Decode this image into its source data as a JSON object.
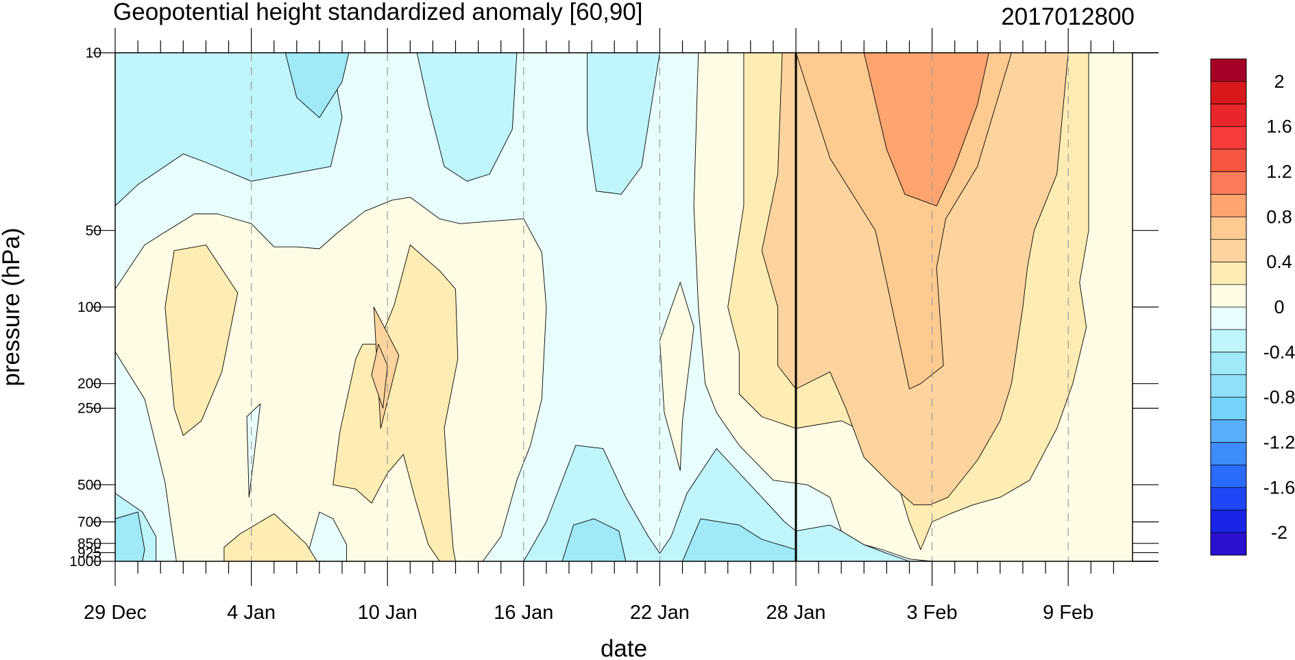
{
  "chart_data": {
    "type": "heatmap",
    "title": "Geopotential height standardized anomaly [60,90]",
    "subtitle": "2017012800",
    "xlabel": "date",
    "ylabel": "pressure (hPa)",
    "y_scale": "log",
    "y_reversed": true,
    "ylim": [
      1000,
      10
    ],
    "x_range": [
      "29 Dec",
      "13 Feb"
    ],
    "x_tick_labels": [
      "29 Dec",
      "4 Jan",
      "10 Jan",
      "16 Jan",
      "22 Jan",
      "28 Jan",
      "3 Feb",
      "9 Feb"
    ],
    "x_tick_days": [
      0,
      6,
      12,
      18,
      24,
      30,
      36,
      42
    ],
    "x_days_total": 45,
    "y_tick_values": [
      10,
      50,
      100,
      200,
      250,
      500,
      700,
      850,
      925,
      1000
    ],
    "y_tick_labels": [
      "10",
      "50",
      "100",
      "200",
      "250",
      "500",
      "700",
      "850",
      "925",
      "1000"
    ],
    "reference_line_day": 30,
    "colorbar": {
      "labels": [
        "2",
        "1.6",
        "1.2",
        "0.8",
        "0.4",
        "0",
        "-0.4",
        "-0.8",
        "-1.2",
        "-1.6",
        "-2"
      ],
      "colors": [
        "#a50026",
        "#d7191c",
        "#e8262b",
        "#f63c3c",
        "#f7553f",
        "#fb7a58",
        "#fda46f",
        "#fdca8f",
        "#fdd49e",
        "#fdecb3",
        "#fffbe4",
        "#e8fdfe",
        "#bff5fb",
        "#9fe9f8",
        "#8fe0f8",
        "#75d2fa",
        "#5aaffc",
        "#3f8cfd",
        "#2a6bfc",
        "#1f47f6",
        "#1823e8",
        "#2a10d0"
      ]
    },
    "legend_placement": "right",
    "grid": false,
    "levels_fill_map": {
      "-0.6": "#9fe9f8",
      "-0.4": "#bff5fb",
      "-0.2": "#e8fdfe",
      "0": "#fffbe4",
      "0.2": "#fdecb3",
      "0.4": "#fdd49e",
      "0.6": "#fdca8f",
      "0.8": "#fda46f"
    },
    "regions": [
      {
        "level": "-0.2",
        "points": [
          [
            0,
            10
          ],
          [
            45,
            10
          ],
          [
            45,
            1000
          ],
          [
            0,
            1000
          ]
        ]
      },
      {
        "level": "-0.4",
        "points": [
          [
            0,
            10
          ],
          [
            4.4,
            10
          ],
          [
            3.5,
            20
          ],
          [
            2,
            28
          ],
          [
            0,
            32
          ]
        ]
      },
      {
        "level": "-0.6",
        "points": [
          [
            0,
            10
          ],
          [
            2,
            10
          ],
          [
            0,
            12.5
          ]
        ]
      },
      {
        "level": "-0.4",
        "points": [
          [
            6.5,
            10
          ],
          [
            9.5,
            10
          ],
          [
            10,
            18
          ],
          [
            9.5,
            28
          ],
          [
            6,
            32
          ],
          [
            4,
            27
          ],
          [
            3,
            25
          ],
          [
            1,
            33
          ],
          [
            0,
            40
          ],
          [
            0,
            10
          ]
        ]
      },
      {
        "level": "-0.6",
        "points": [
          [
            7.5,
            10
          ],
          [
            10.3,
            10
          ],
          [
            10,
            13
          ],
          [
            9,
            18
          ],
          [
            8,
            15
          ]
        ]
      },
      {
        "level": "-0.4",
        "points": [
          [
            13.3,
            10
          ],
          [
            17.7,
            10
          ],
          [
            17.5,
            20
          ],
          [
            16.5,
            30
          ],
          [
            15.5,
            32
          ],
          [
            14.5,
            28
          ],
          [
            13.8,
            16
          ]
        ]
      },
      {
        "level": "-0.4",
        "points": [
          [
            20.8,
            10
          ],
          [
            24,
            10
          ],
          [
            23.2,
            28
          ],
          [
            22.3,
            36
          ],
          [
            21.2,
            35
          ],
          [
            20.8,
            20
          ]
        ]
      },
      {
        "level": "-0.4",
        "points": [
          [
            0,
            540
          ],
          [
            1.2,
            640
          ],
          [
            1.8,
            800
          ],
          [
            1.8,
            1000
          ],
          [
            0,
            1000
          ]
        ]
      },
      {
        "level": "-0.6",
        "points": [
          [
            0,
            680
          ],
          [
            1,
            640
          ],
          [
            1.3,
            900
          ],
          [
            1.2,
            1000
          ],
          [
            0,
            1000
          ]
        ]
      },
      {
        "level": "-0.4",
        "points": [
          [
            18,
            1000
          ],
          [
            19,
            700
          ],
          [
            20.3,
            350
          ],
          [
            21.5,
            360
          ],
          [
            22.5,
            560
          ],
          [
            23.5,
            800
          ],
          [
            24,
            930
          ],
          [
            24.5,
            800
          ],
          [
            25.2,
            540
          ],
          [
            26.5,
            360
          ],
          [
            27.3,
            430
          ],
          [
            28.5,
            560
          ],
          [
            29.5,
            700
          ],
          [
            30,
            760
          ],
          [
            30,
            1000
          ]
        ]
      },
      {
        "level": "-0.6",
        "points": [
          [
            19.7,
            1000
          ],
          [
            20.2,
            720
          ],
          [
            21.1,
            680
          ],
          [
            22.2,
            760
          ],
          [
            22.5,
            1000
          ]
        ]
      },
      {
        "level": "-0.6",
        "points": [
          [
            25,
            1000
          ],
          [
            25.8,
            680
          ],
          [
            27.5,
            720
          ],
          [
            28.5,
            820
          ],
          [
            30,
            900
          ],
          [
            30,
            1000
          ]
        ]
      },
      {
        "level": "-0.4",
        "points": [
          [
            30,
            1000
          ],
          [
            30,
            760
          ],
          [
            31.5,
            720
          ],
          [
            32,
            760
          ],
          [
            33,
            860
          ],
          [
            34,
            930
          ],
          [
            35,
            1000
          ]
        ]
      },
      {
        "level": "0",
        "points": [
          [
            0,
            85
          ],
          [
            1.3,
            57
          ],
          [
            2,
            52
          ],
          [
            3.5,
            43
          ],
          [
            4.5,
            43
          ],
          [
            6,
            47
          ],
          [
            7,
            58
          ],
          [
            8,
            58
          ],
          [
            9,
            59
          ],
          [
            9.8,
            51
          ],
          [
            11,
            42
          ],
          [
            12.2,
            38
          ],
          [
            13,
            37
          ],
          [
            14.3,
            45
          ],
          [
            15.2,
            47
          ],
          [
            16.5,
            46
          ],
          [
            18,
            45
          ],
          [
            18.8,
            61
          ],
          [
            19,
            100
          ],
          [
            18.8,
            230
          ],
          [
            18.3,
            350
          ],
          [
            17.7,
            480
          ],
          [
            17,
            800
          ],
          [
            16.2,
            1000
          ],
          [
            10.2,
            1000
          ],
          [
            10.2,
            860
          ],
          [
            9.6,
            680
          ],
          [
            9,
            640
          ],
          [
            8.4,
            1000
          ],
          [
            2.7,
            1000
          ],
          [
            2.5,
            760
          ],
          [
            2.2,
            490
          ],
          [
            1.3,
            230
          ],
          [
            0,
            150
          ]
        ]
      },
      {
        "level": "0.2",
        "points": [
          [
            2.2,
            100
          ],
          [
            2.6,
            60
          ],
          [
            4,
            57
          ],
          [
            5.4,
            88
          ],
          [
            4.7,
            180
          ],
          [
            3.8,
            280
          ],
          [
            3,
            320
          ],
          [
            2.6,
            250
          ]
        ]
      },
      {
        "level": "0.2",
        "points": [
          [
            9.6,
            500
          ],
          [
            9.9,
            310
          ],
          [
            10.6,
            160
          ],
          [
            10.9,
            140
          ],
          [
            11.6,
            140
          ],
          [
            12.3,
            98
          ],
          [
            13,
            57
          ],
          [
            14.3,
            72
          ],
          [
            15,
            85
          ],
          [
            15.1,
            160
          ],
          [
            14.5,
            300
          ],
          [
            14.7,
            540
          ],
          [
            14.8,
            700
          ],
          [
            14.9,
            900
          ],
          [
            15,
            1000
          ],
          [
            14.3,
            1000
          ],
          [
            13.8,
            860
          ],
          [
            13.2,
            560
          ],
          [
            12.7,
            380
          ],
          [
            12,
            450
          ],
          [
            11.3,
            590
          ],
          [
            10.6,
            520
          ]
        ]
      },
      {
        "level": "0.2",
        "points": [
          [
            4.8,
            1000
          ],
          [
            4.8,
            880
          ],
          [
            5.5,
            780
          ],
          [
            7,
            650
          ],
          [
            8.4,
            850
          ],
          [
            8.9,
            1000
          ]
        ]
      },
      {
        "level": "0.4",
        "points": [
          [
            11.4,
            100
          ],
          [
            12.5,
            155
          ],
          [
            11.7,
            300
          ]
        ]
      },
      {
        "level": "0.4",
        "points": [
          [
            11.3,
            185
          ],
          [
            11.6,
            140
          ],
          [
            12,
            170
          ],
          [
            11.8,
            250
          ]
        ]
      },
      {
        "level": "-0.2",
        "points": [
          [
            5.8,
            270
          ],
          [
            6.4,
            240
          ],
          [
            5.9,
            560
          ]
        ]
      },
      {
        "level": "0",
        "points": [
          [
            24,
            135
          ],
          [
            24.9,
            80
          ],
          [
            25.5,
            120
          ],
          [
            25,
            280
          ],
          [
            24.9,
            440
          ],
          [
            24.2,
            260
          ]
        ]
      },
      {
        "level": "0",
        "points": [
          [
            25.7,
            10
          ],
          [
            45,
            10
          ],
          [
            45,
            1000
          ],
          [
            36,
            1000
          ],
          [
            35,
            980
          ],
          [
            33.8,
            900
          ],
          [
            33,
            860
          ],
          [
            32,
            760
          ],
          [
            31.5,
            560
          ],
          [
            30.5,
            500
          ],
          [
            29,
            480
          ],
          [
            27.5,
            350
          ],
          [
            26.5,
            260
          ],
          [
            26,
            200
          ],
          [
            25.7,
            100
          ],
          [
            25.5,
            40
          ]
        ]
      },
      {
        "level": "0.2",
        "points": [
          [
            27.7,
            10
          ],
          [
            42.9,
            10
          ],
          [
            42.9,
            50
          ],
          [
            42.5,
            80
          ],
          [
            42.8,
            120
          ],
          [
            42.2,
            200
          ],
          [
            41.5,
            300
          ],
          [
            40.3,
            480
          ],
          [
            39,
            560
          ],
          [
            37.8,
            600
          ],
          [
            36.8,
            650
          ],
          [
            36,
            700
          ],
          [
            35.5,
            900
          ],
          [
            35,
            700
          ],
          [
            34.5,
            500
          ],
          [
            33,
            310
          ],
          [
            32,
            280
          ],
          [
            30,
            300
          ],
          [
            28.5,
            270
          ],
          [
            27.5,
            220
          ],
          [
            27.5,
            150
          ],
          [
            27,
            100
          ],
          [
            27.7,
            40
          ]
        ]
      },
      {
        "level": "0.4",
        "points": [
          [
            29.4,
            10
          ],
          [
            42,
            10
          ],
          [
            41.5,
            30
          ],
          [
            40.5,
            50
          ],
          [
            40.2,
            70
          ],
          [
            40,
            100
          ],
          [
            39.5,
            200
          ],
          [
            39,
            280
          ],
          [
            38,
            400
          ],
          [
            36.7,
            560
          ],
          [
            35.9,
            600
          ],
          [
            35.2,
            600
          ],
          [
            34.2,
            500
          ],
          [
            33,
            390
          ],
          [
            32.2,
            250
          ],
          [
            31.5,
            180
          ],
          [
            30,
            210
          ],
          [
            29.2,
            170
          ],
          [
            29.2,
            100
          ],
          [
            28.5,
            60
          ],
          [
            29.2,
            30
          ]
        ]
      },
      {
        "level": "0.4",
        "points": [
          [
            30,
            27
          ],
          [
            30,
            100
          ],
          [
            30,
            240
          ]
        ]
      },
      {
        "level": "0.6",
        "points": [
          [
            30,
            10
          ],
          [
            39.5,
            10
          ],
          [
            38,
            28
          ],
          [
            36.6,
            45
          ],
          [
            36.2,
            70
          ],
          [
            36.5,
            170
          ],
          [
            35.5,
            200
          ],
          [
            35,
            210
          ],
          [
            34.5,
            130
          ],
          [
            34,
            80
          ],
          [
            33.5,
            50
          ],
          [
            31.5,
            26
          ]
        ]
      },
      {
        "level": "0.8",
        "points": [
          [
            33,
            10
          ],
          [
            38.5,
            10
          ],
          [
            38,
            16
          ],
          [
            37,
            28
          ],
          [
            36.2,
            40
          ],
          [
            34.8,
            36
          ],
          [
            34,
            24
          ]
        ]
      }
    ]
  }
}
